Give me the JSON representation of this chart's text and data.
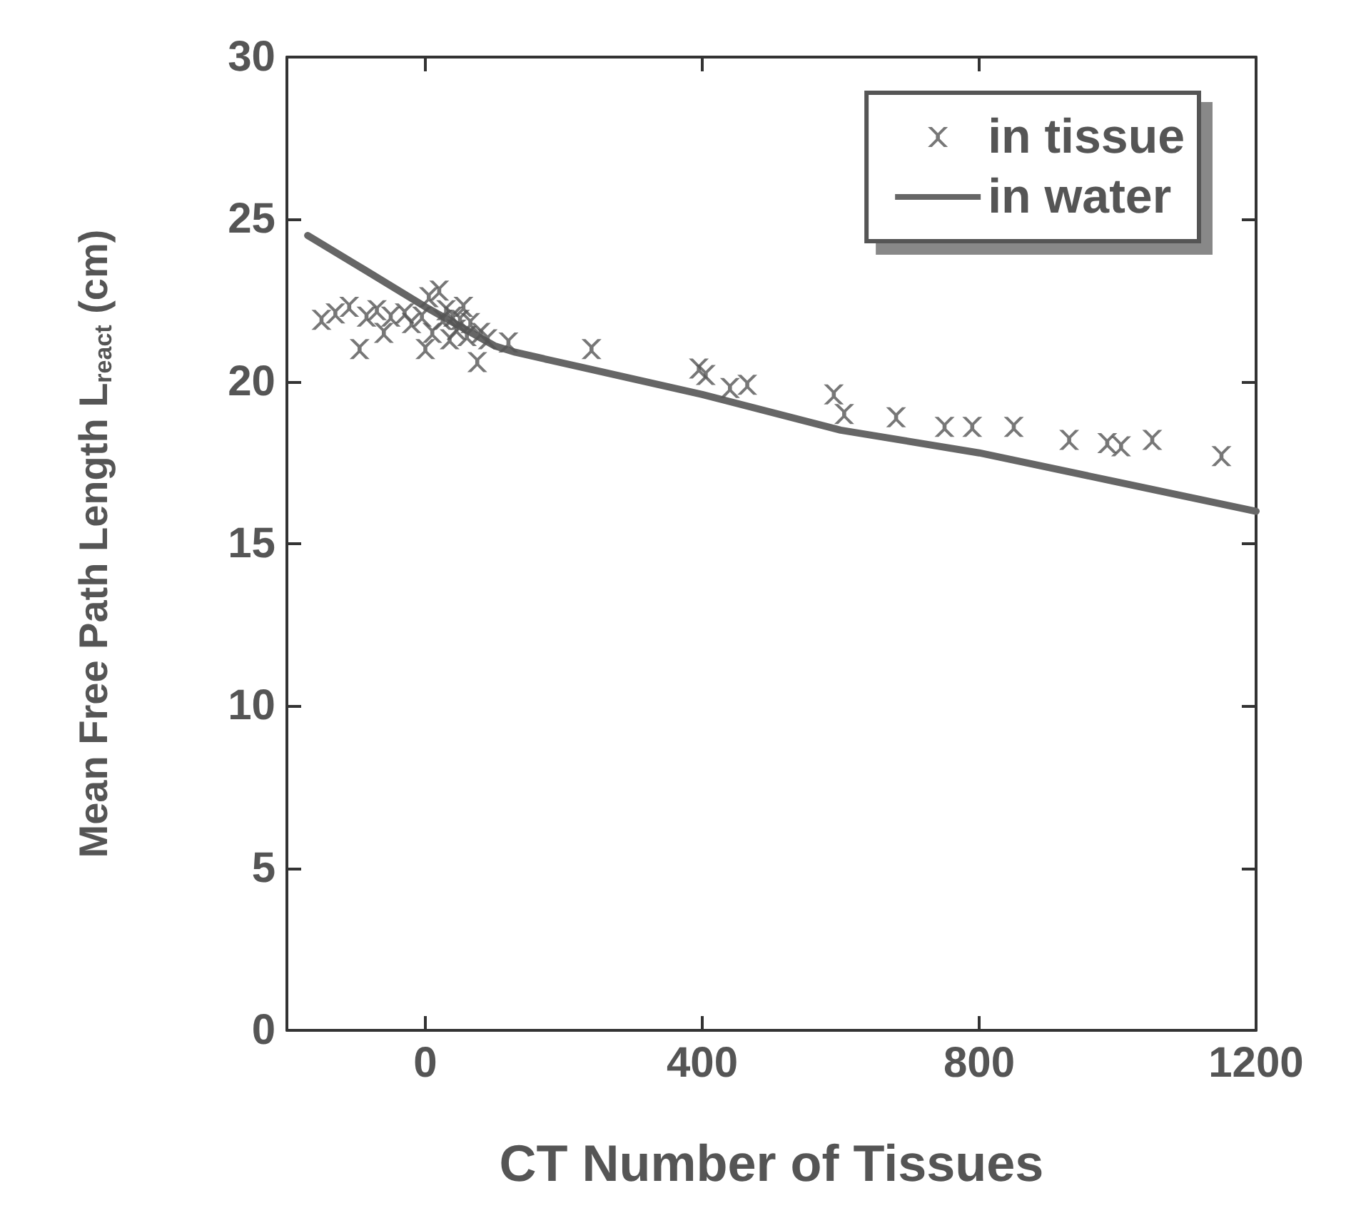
{
  "chart_data": {
    "type": "scatter",
    "xlabel": "CT Number of Tissues",
    "ylabel": "Mean Free Path Length L$_{react}$ (cm)",
    "xlim": [
      -200,
      1200
    ],
    "xticks": [
      0,
      400,
      800,
      1200
    ],
    "ylim": [
      0,
      30
    ],
    "yticks": [
      0,
      5,
      10,
      15,
      20,
      25,
      30
    ],
    "grid": false,
    "legend": "top right",
    "series": [
      {
        "name": "in tissue",
        "marker": "cross",
        "color": "#555555",
        "x": [
          -150,
          -130,
          -110,
          -95,
          -85,
          -70,
          -60,
          -50,
          -30,
          -20,
          -5,
          0,
          5,
          10,
          20,
          25,
          30,
          35,
          40,
          45,
          50,
          55,
          60,
          65,
          75,
          80,
          90,
          120,
          240,
          395,
          405,
          440,
          465,
          590,
          605,
          680,
          750,
          790,
          850,
          930,
          985,
          1005,
          1050,
          1150
        ],
        "values": [
          21.9,
          22.1,
          22.3,
          21.0,
          22.0,
          22.2,
          21.5,
          22.0,
          22.1,
          21.8,
          22.0,
          21.0,
          22.6,
          21.5,
          22.8,
          21.9,
          22.2,
          21.3,
          22.0,
          21.6,
          21.9,
          22.3,
          21.4,
          21.8,
          20.6,
          21.5,
          21.3,
          21.2,
          21.0,
          20.4,
          20.2,
          19.8,
          19.9,
          19.6,
          19.0,
          18.9,
          18.6,
          18.6,
          18.6,
          18.2,
          18.1,
          18.0,
          18.2,
          17.7
        ]
      },
      {
        "name": "in water",
        "type": "line",
        "marker": "none",
        "color": "#666666",
        "line_style": "solid",
        "x": [
          -170,
          -100,
          0,
          100,
          130,
          400,
          600,
          800,
          1000,
          1200
        ],
        "values": [
          24.5,
          23.6,
          22.3,
          21.1,
          20.9,
          19.6,
          18.5,
          17.8,
          16.9,
          16.0
        ]
      }
    ]
  }
}
